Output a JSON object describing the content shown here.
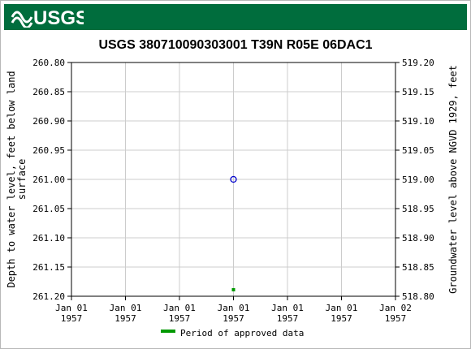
{
  "header": {
    "logo_text": "USGS",
    "brand_color": "#006d3d"
  },
  "chart_data": {
    "type": "scatter",
    "title": "USGS 380710090303001 T39N R05E 06DAC1",
    "ylabel_left": "Depth to water level, feet below land surface",
    "ylabel_left_lines": [
      "Depth to water level, feet below land",
      "surface"
    ],
    "ylabel_right": "Groundwater level above NGVD 1929, feet",
    "y_left": {
      "range": [
        260.8,
        261.2
      ],
      "inverted": true,
      "ticks": [
        "260.80",
        "260.85",
        "260.90",
        "260.95",
        "261.00",
        "261.05",
        "261.10",
        "261.15",
        "261.20"
      ]
    },
    "y_right": {
      "range": [
        519.2,
        518.8
      ],
      "ticks": [
        "519.20",
        "519.15",
        "519.10",
        "519.05",
        "519.00",
        "518.95",
        "518.90",
        "518.85",
        "518.80"
      ]
    },
    "x_ticks": [
      [
        "Jan 01",
        "1957"
      ],
      [
        "Jan 01",
        "1957"
      ],
      [
        "Jan 01",
        "1957"
      ],
      [
        "Jan 01",
        "1957"
      ],
      [
        "Jan 01",
        "1957"
      ],
      [
        "Jan 01",
        "1957"
      ],
      [
        "Jan 02",
        "1957"
      ]
    ],
    "x_range": [
      "1957-01-01T00:00",
      "1957-01-02T00:00"
    ],
    "points": [
      {
        "x": "1957-01-01T12:00",
        "y": 261.0,
        "marker": "open-circle",
        "color": "#0000cc"
      }
    ],
    "approved_periods": [
      {
        "x": "1957-01-01T12:00",
        "color": "#009900"
      }
    ],
    "grid": true,
    "legend": {
      "position": "bottom-center",
      "entries": [
        {
          "label": "Period of approved data",
          "color": "#009900"
        }
      ]
    }
  }
}
